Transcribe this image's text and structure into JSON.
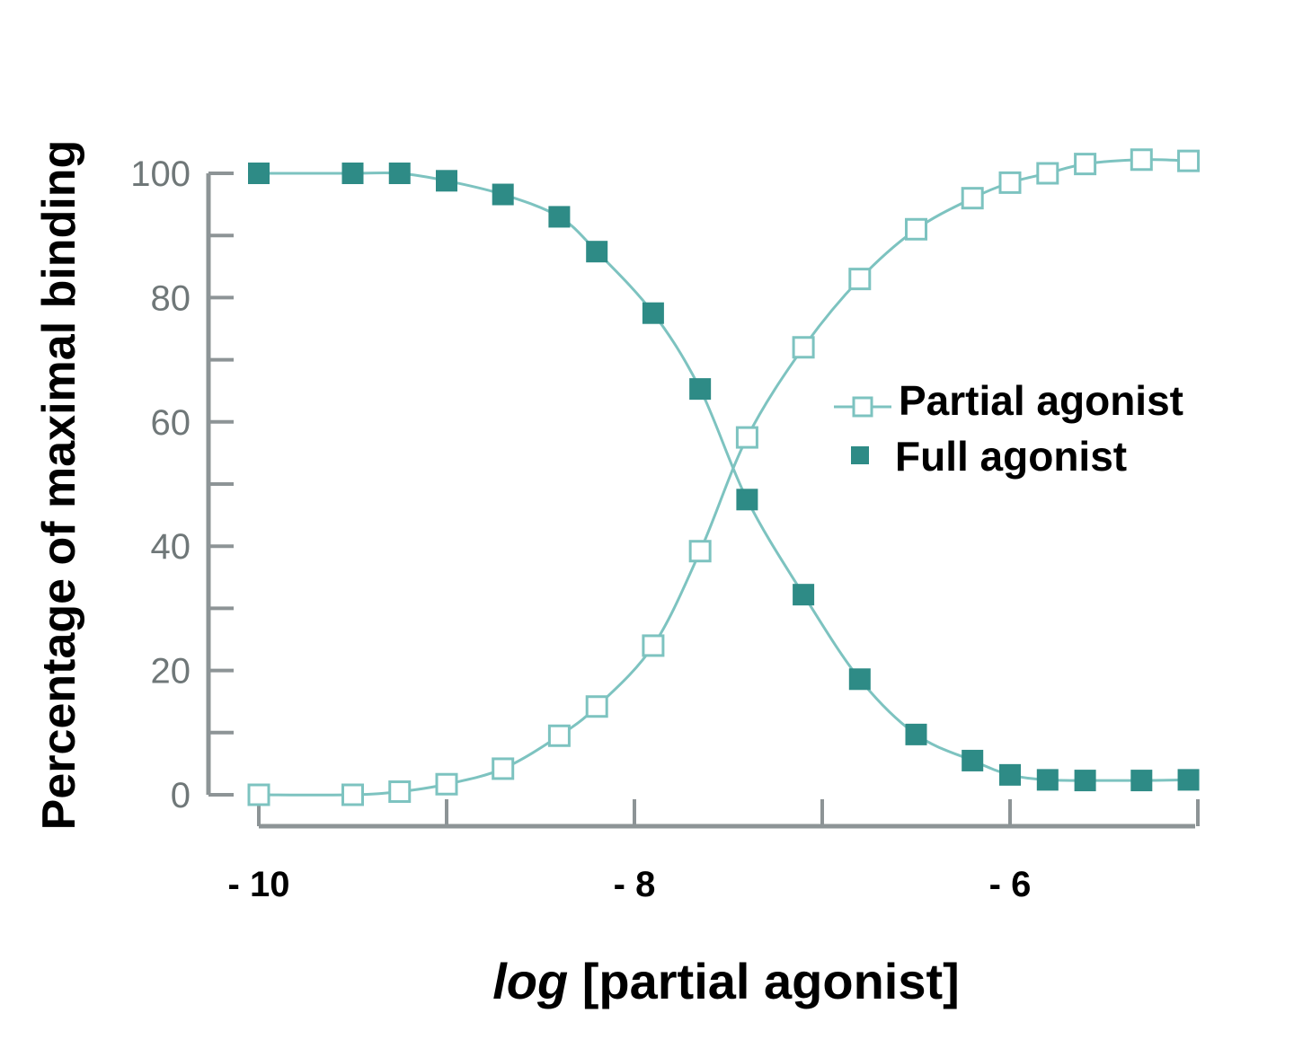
{
  "colors": {
    "axis": "#8d9496",
    "series": "#7dc3c0",
    "full_fill": "#2e8b86",
    "partial_fill": "#ffffff"
  },
  "chart_data": {
    "type": "line",
    "ylabel": "Percentage of maximal binding",
    "xlabel_italic": "log",
    "xlabel_rest": " [partial agonist]",
    "ylim": [
      0,
      100
    ],
    "xlim": [
      -10.05,
      -5.05
    ],
    "y_ticks": [
      0,
      20,
      40,
      60,
      80,
      100
    ],
    "y_ticks_display": [
      "0",
      "20",
      "40",
      "60",
      "80",
      "100"
    ],
    "x_ticks": [
      -10,
      -9,
      -8,
      -7,
      -6,
      -5
    ],
    "x_tick_labels": [
      {
        "value": -10,
        "label": "- 10"
      },
      {
        "value": -8,
        "label": "- 8"
      },
      {
        "value": -6,
        "label": "- 6"
      }
    ],
    "grid": false,
    "legend_position": "center-right",
    "series": [
      {
        "name": "Partial agonist",
        "marker": "open-square",
        "x": [
          -10.0,
          -9.5,
          -9.25,
          -9.0,
          -8.7,
          -8.4,
          -8.2,
          -7.9,
          -7.65,
          -7.4,
          -7.1,
          -6.8,
          -6.5,
          -6.2,
          -6.0,
          -5.8,
          -5.6,
          -5.3,
          -5.05
        ],
        "y": [
          0,
          0,
          0.5,
          1.7,
          4.2,
          9.5,
          14.2,
          24.0,
          39.2,
          57.5,
          72.0,
          83.0,
          91.0,
          96.0,
          98.5,
          100.0,
          101.5,
          102.2,
          102.0
        ]
      },
      {
        "name": "Full agonist",
        "marker": "filled-square",
        "x": [
          -10.0,
          -9.5,
          -9.25,
          -9.0,
          -8.7,
          -8.4,
          -8.2,
          -7.9,
          -7.65,
          -7.4,
          -7.1,
          -6.8,
          -6.5,
          -6.2,
          -6.0,
          -5.8,
          -5.6,
          -5.3,
          -5.05
        ],
        "y": [
          100,
          100,
          100,
          98.8,
          96.6,
          93.0,
          87.4,
          77.5,
          65.3,
          47.5,
          32.2,
          18.6,
          9.7,
          5.5,
          3.2,
          2.4,
          2.3,
          2.3,
          2.4
        ]
      }
    ]
  }
}
